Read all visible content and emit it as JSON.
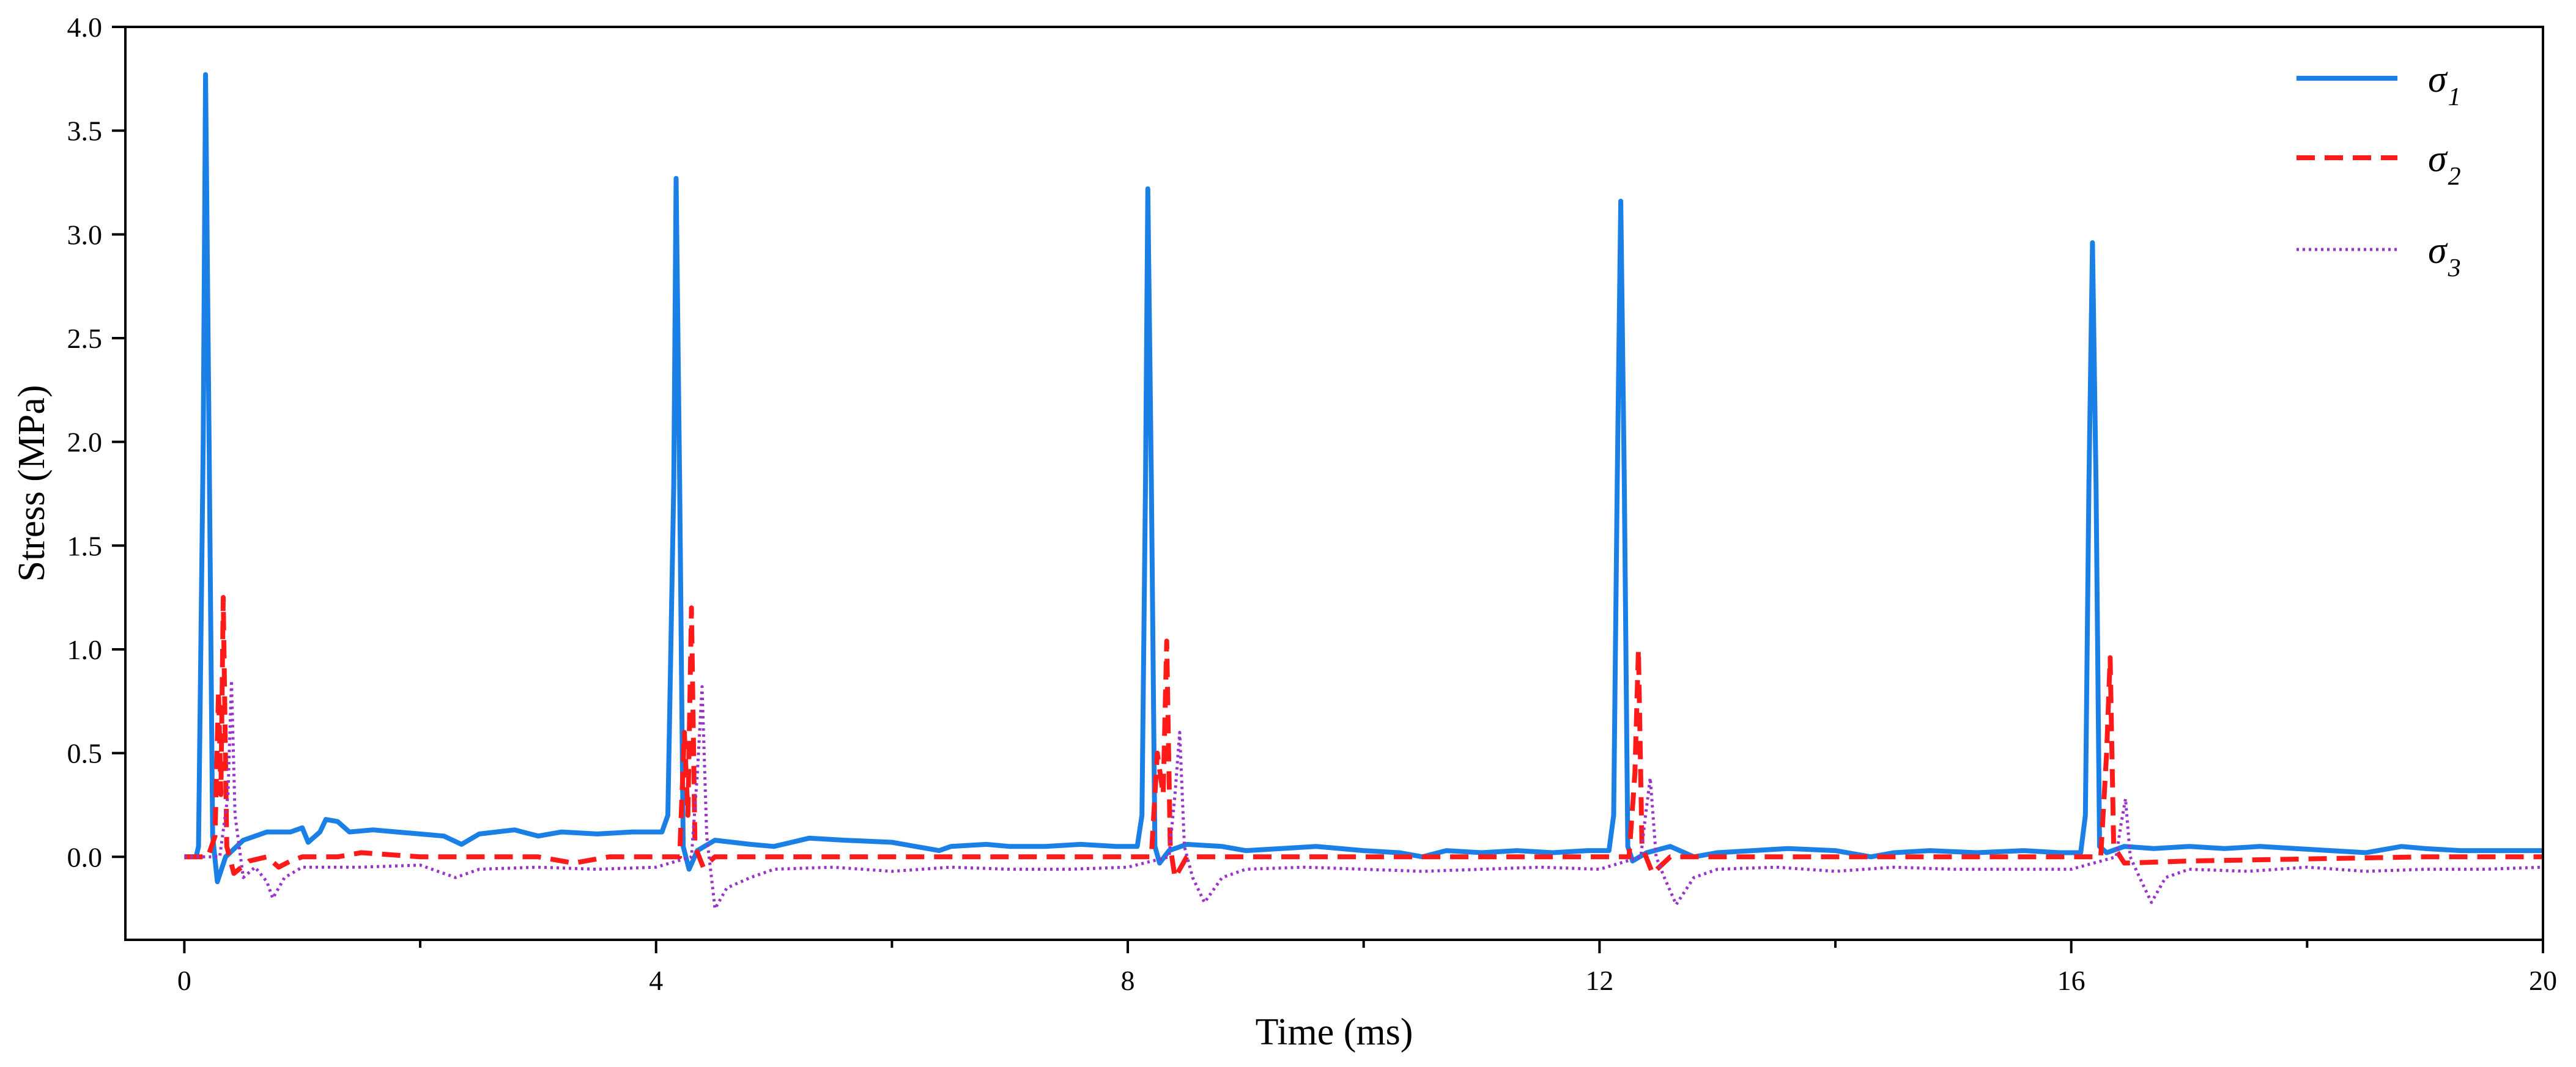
{
  "chart_data": {
    "type": "line",
    "xlabel": "Time (ms)",
    "ylabel": "Stress (MPa)",
    "xlim": [
      -0.5,
      20
    ],
    "ylim": [
      -0.4,
      4.0
    ],
    "x_ticks": [
      0,
      4,
      8,
      12,
      16,
      20
    ],
    "x_tick_labels": [
      "0",
      "4",
      "8",
      "12",
      "16",
      "20"
    ],
    "x_minor_ticks": [
      2,
      6,
      10,
      14,
      18
    ],
    "y_ticks": [
      0,
      0.5,
      1.0,
      1.5,
      2.0,
      2.5,
      3.0,
      3.5,
      4.0
    ],
    "y_tick_labels": [
      "0.0",
      "0.5",
      "1.0",
      "1.5",
      "2.0",
      "2.5",
      "3.0",
      "3.5",
      "4.0"
    ],
    "grid": false,
    "legend_position": "top-right",
    "series": [
      {
        "name": "σ1",
        "symbol": "σ",
        "subscript": "1",
        "color": "#1a80e6",
        "dash": "solid",
        "points": [
          [
            0.0,
            0.0
          ],
          [
            0.1,
            0.0
          ],
          [
            0.12,
            0.05
          ],
          [
            0.16,
            2.0
          ],
          [
            0.18,
            3.77
          ],
          [
            0.21,
            2.0
          ],
          [
            0.24,
            0.1
          ],
          [
            0.28,
            -0.12
          ],
          [
            0.35,
            0.0
          ],
          [
            0.5,
            0.08
          ],
          [
            0.7,
            0.12
          ],
          [
            0.9,
            0.12
          ],
          [
            1.0,
            0.14
          ],
          [
            1.05,
            0.07
          ],
          [
            1.15,
            0.12
          ],
          [
            1.2,
            0.18
          ],
          [
            1.3,
            0.17
          ],
          [
            1.4,
            0.12
          ],
          [
            1.6,
            0.13
          ],
          [
            1.8,
            0.12
          ],
          [
            2.0,
            0.11
          ],
          [
            2.2,
            0.1
          ],
          [
            2.35,
            0.06
          ],
          [
            2.5,
            0.11
          ],
          [
            2.8,
            0.13
          ],
          [
            3.0,
            0.1
          ],
          [
            3.2,
            0.12
          ],
          [
            3.5,
            0.11
          ],
          [
            3.8,
            0.12
          ],
          [
            4.05,
            0.12
          ],
          [
            4.1,
            0.2
          ],
          [
            4.15,
            1.8
          ],
          [
            4.17,
            3.27
          ],
          [
            4.2,
            1.8
          ],
          [
            4.23,
            0.05
          ],
          [
            4.28,
            -0.06
          ],
          [
            4.35,
            0.03
          ],
          [
            4.5,
            0.08
          ],
          [
            4.8,
            0.06
          ],
          [
            5.0,
            0.05
          ],
          [
            5.3,
            0.09
          ],
          [
            5.6,
            0.08
          ],
          [
            6.0,
            0.07
          ],
          [
            6.2,
            0.05
          ],
          [
            6.4,
            0.03
          ],
          [
            6.5,
            0.05
          ],
          [
            6.8,
            0.06
          ],
          [
            7.0,
            0.05
          ],
          [
            7.3,
            0.05
          ],
          [
            7.6,
            0.06
          ],
          [
            7.9,
            0.05
          ],
          [
            8.08,
            0.05
          ],
          [
            8.12,
            0.2
          ],
          [
            8.15,
            1.8
          ],
          [
            8.17,
            3.22
          ],
          [
            8.2,
            1.8
          ],
          [
            8.23,
            0.05
          ],
          [
            8.27,
            -0.03
          ],
          [
            8.35,
            0.03
          ],
          [
            8.5,
            0.06
          ],
          [
            8.8,
            0.05
          ],
          [
            9.0,
            0.03
          ],
          [
            9.3,
            0.04
          ],
          [
            9.6,
            0.05
          ],
          [
            10.0,
            0.03
          ],
          [
            10.3,
            0.02
          ],
          [
            10.5,
            0.0
          ],
          [
            10.7,
            0.03
          ],
          [
            11.0,
            0.02
          ],
          [
            11.3,
            0.03
          ],
          [
            11.6,
            0.02
          ],
          [
            11.9,
            0.03
          ],
          [
            12.08,
            0.03
          ],
          [
            12.12,
            0.2
          ],
          [
            12.15,
            1.8
          ],
          [
            12.18,
            3.16
          ],
          [
            12.21,
            1.8
          ],
          [
            12.24,
            0.05
          ],
          [
            12.28,
            -0.02
          ],
          [
            12.4,
            0.02
          ],
          [
            12.6,
            0.05
          ],
          [
            12.8,
            0.0
          ],
          [
            13.0,
            0.02
          ],
          [
            13.3,
            0.03
          ],
          [
            13.6,
            0.04
          ],
          [
            14.0,
            0.03
          ],
          [
            14.3,
            0.0
          ],
          [
            14.5,
            0.02
          ],
          [
            14.8,
            0.03
          ],
          [
            15.2,
            0.02
          ],
          [
            15.6,
            0.03
          ],
          [
            15.9,
            0.02
          ],
          [
            16.08,
            0.02
          ],
          [
            16.12,
            0.2
          ],
          [
            16.15,
            1.8
          ],
          [
            16.18,
            2.96
          ],
          [
            16.21,
            1.8
          ],
          [
            16.24,
            0.05
          ],
          [
            16.3,
            0.02
          ],
          [
            16.45,
            0.05
          ],
          [
            16.7,
            0.04
          ],
          [
            17.0,
            0.05
          ],
          [
            17.3,
            0.04
          ],
          [
            17.6,
            0.05
          ],
          [
            17.9,
            0.04
          ],
          [
            18.2,
            0.03
          ],
          [
            18.5,
            0.02
          ],
          [
            18.8,
            0.05
          ],
          [
            19.0,
            0.04
          ],
          [
            19.3,
            0.03
          ],
          [
            19.6,
            0.03
          ],
          [
            20.0,
            0.03
          ]
        ]
      },
      {
        "name": "σ2",
        "symbol": "σ",
        "subscript": "2",
        "color": "#ff1a1a",
        "dash": "dashed",
        "points": [
          [
            0.0,
            0.0
          ],
          [
            0.2,
            0.0
          ],
          [
            0.26,
            0.1
          ],
          [
            0.29,
            0.8
          ],
          [
            0.31,
            0.3
          ],
          [
            0.33,
            1.25
          ],
          [
            0.36,
            0.05
          ],
          [
            0.42,
            -0.08
          ],
          [
            0.55,
            -0.02
          ],
          [
            0.7,
            0.0
          ],
          [
            0.8,
            -0.05
          ],
          [
            0.9,
            -0.02
          ],
          [
            1.0,
            0.0
          ],
          [
            1.3,
            0.0
          ],
          [
            1.5,
            0.02
          ],
          [
            2.0,
            0.0
          ],
          [
            2.4,
            0.0
          ],
          [
            2.7,
            0.0
          ],
          [
            3.0,
            0.0
          ],
          [
            3.3,
            -0.03
          ],
          [
            3.6,
            0.0
          ],
          [
            4.0,
            0.0
          ],
          [
            4.2,
            0.0
          ],
          [
            4.24,
            0.6
          ],
          [
            4.27,
            0.2
          ],
          [
            4.3,
            1.2
          ],
          [
            4.33,
            0.05
          ],
          [
            4.4,
            -0.05
          ],
          [
            4.5,
            0.0
          ],
          [
            5.0,
            0.0
          ],
          [
            6.0,
            0.0
          ],
          [
            7.0,
            0.0
          ],
          [
            8.0,
            0.0
          ],
          [
            8.2,
            0.0
          ],
          [
            8.25,
            0.5
          ],
          [
            8.3,
            0.3
          ],
          [
            8.33,
            1.04
          ],
          [
            8.36,
            0.05
          ],
          [
            8.4,
            -0.1
          ],
          [
            8.5,
            0.0
          ],
          [
            9.0,
            0.0
          ],
          [
            10.0,
            0.0
          ],
          [
            11.0,
            0.0
          ],
          [
            12.0,
            0.0
          ],
          [
            12.25,
            0.0
          ],
          [
            12.3,
            0.4
          ],
          [
            12.33,
            1.0
          ],
          [
            12.36,
            0.05
          ],
          [
            12.45,
            -0.08
          ],
          [
            12.6,
            0.0
          ],
          [
            13.0,
            0.0
          ],
          [
            14.0,
            0.0
          ],
          [
            15.0,
            0.0
          ],
          [
            16.0,
            0.0
          ],
          [
            16.25,
            0.0
          ],
          [
            16.3,
            0.5
          ],
          [
            16.33,
            0.96
          ],
          [
            16.36,
            0.05
          ],
          [
            16.45,
            -0.03
          ],
          [
            17.0,
            -0.02
          ],
          [
            18.0,
            -0.01
          ],
          [
            19.0,
            0.0
          ],
          [
            20.0,
            0.0
          ]
        ]
      },
      {
        "name": "σ3",
        "symbol": "σ",
        "subscript": "3",
        "color": "#9933cc",
        "dash": "dotted",
        "points": [
          [
            0.0,
            0.0
          ],
          [
            0.3,
            0.0
          ],
          [
            0.37,
            0.3
          ],
          [
            0.4,
            0.85
          ],
          [
            0.43,
            0.2
          ],
          [
            0.5,
            -0.1
          ],
          [
            0.6,
            -0.05
          ],
          [
            0.7,
            -0.12
          ],
          [
            0.75,
            -0.2
          ],
          [
            0.85,
            -0.1
          ],
          [
            1.0,
            -0.05
          ],
          [
            1.5,
            -0.05
          ],
          [
            2.0,
            -0.04
          ],
          [
            2.3,
            -0.1
          ],
          [
            2.5,
            -0.06
          ],
          [
            3.0,
            -0.05
          ],
          [
            3.5,
            -0.06
          ],
          [
            4.0,
            -0.05
          ],
          [
            4.3,
            0.0
          ],
          [
            4.35,
            0.4
          ],
          [
            4.39,
            0.82
          ],
          [
            4.43,
            0.1
          ],
          [
            4.5,
            -0.25
          ],
          [
            4.6,
            -0.15
          ],
          [
            4.8,
            -0.1
          ],
          [
            5.0,
            -0.06
          ],
          [
            5.5,
            -0.05
          ],
          [
            6.0,
            -0.07
          ],
          [
            6.5,
            -0.05
          ],
          [
            7.0,
            -0.06
          ],
          [
            7.5,
            -0.06
          ],
          [
            8.0,
            -0.05
          ],
          [
            8.35,
            0.0
          ],
          [
            8.4,
            0.3
          ],
          [
            8.44,
            0.6
          ],
          [
            8.48,
            0.05
          ],
          [
            8.55,
            -0.1
          ],
          [
            8.65,
            -0.22
          ],
          [
            8.8,
            -0.1
          ],
          [
            9.0,
            -0.06
          ],
          [
            9.5,
            -0.05
          ],
          [
            10.0,
            -0.06
          ],
          [
            10.5,
            -0.07
          ],
          [
            11.0,
            -0.06
          ],
          [
            11.5,
            -0.05
          ],
          [
            12.0,
            -0.06
          ],
          [
            12.35,
            0.0
          ],
          [
            12.39,
            0.2
          ],
          [
            12.43,
            0.38
          ],
          [
            12.48,
            0.0
          ],
          [
            12.55,
            -0.1
          ],
          [
            12.65,
            -0.23
          ],
          [
            12.8,
            -0.1
          ],
          [
            13.0,
            -0.06
          ],
          [
            13.5,
            -0.05
          ],
          [
            14.0,
            -0.07
          ],
          [
            14.5,
            -0.05
          ],
          [
            15.0,
            -0.06
          ],
          [
            15.5,
            -0.06
          ],
          [
            16.0,
            -0.06
          ],
          [
            16.38,
            0.0
          ],
          [
            16.42,
            0.15
          ],
          [
            16.46,
            0.28
          ],
          [
            16.5,
            0.0
          ],
          [
            16.58,
            -0.1
          ],
          [
            16.68,
            -0.22
          ],
          [
            16.8,
            -0.1
          ],
          [
            17.0,
            -0.06
          ],
          [
            17.5,
            -0.07
          ],
          [
            18.0,
            -0.05
          ],
          [
            18.5,
            -0.07
          ],
          [
            19.0,
            -0.06
          ],
          [
            19.5,
            -0.06
          ],
          [
            20.0,
            -0.05
          ]
        ]
      }
    ]
  }
}
